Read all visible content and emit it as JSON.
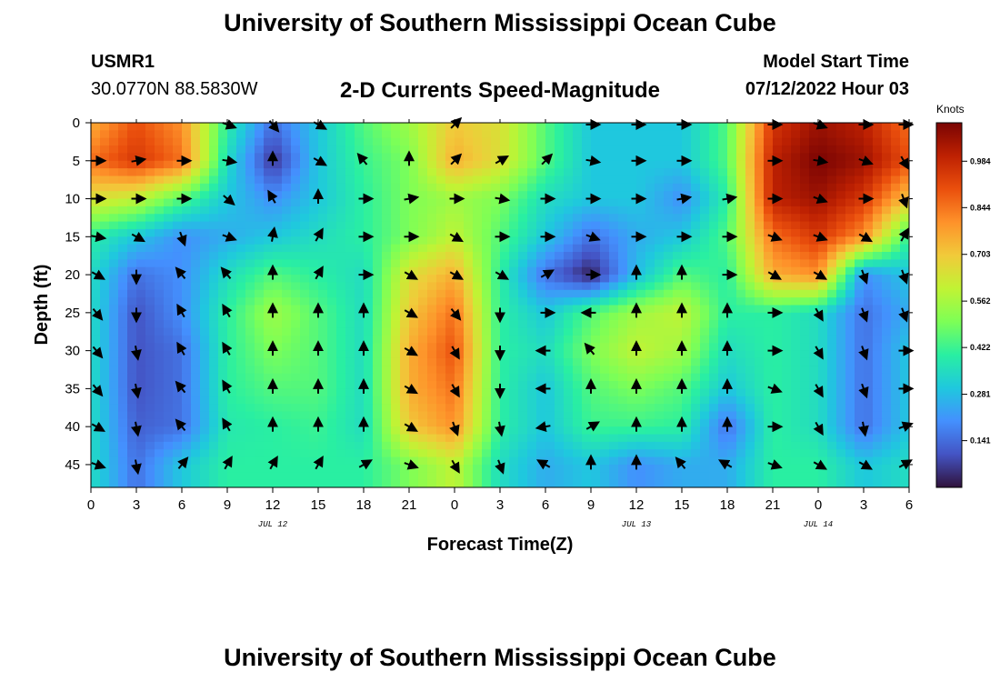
{
  "header": {
    "title": "University of Southern Mississippi Ocean Cube",
    "station": "USMR1",
    "coordinates": "30.0770N  88.5830W",
    "subtitle": "2-D Currents Speed-Magnitude",
    "model_start_label": "Model Start Time",
    "model_start_value": "07/12/2022 Hour 03",
    "footer_title": "University of Southern Mississippi Ocean Cube"
  },
  "chart_data": {
    "type": "heatmap",
    "xlabel": "Forecast Time(Z)",
    "ylabel": "Depth (ft)",
    "x_tick_labels": [
      "0",
      "3",
      "6",
      "9",
      "12",
      "15",
      "18",
      "21",
      "0",
      "3",
      "6",
      "9",
      "12",
      "15",
      "18",
      "21",
      "0",
      "3",
      "6"
    ],
    "x_range_hours": [
      0,
      54
    ],
    "date_labels": [
      {
        "text": "JUL 12",
        "at_hour": 12
      },
      {
        "text": "JUL 13",
        "at_hour": 36
      },
      {
        "text": "JUL 14",
        "at_hour": 48
      }
    ],
    "y_ticks": [
      0,
      5,
      10,
      15,
      20,
      25,
      30,
      35,
      40,
      45
    ],
    "ylim": [
      0,
      48
    ],
    "y_inverted": true,
    "colorbar": {
      "units": "Knots",
      "tick_labels": [
        "0.141",
        "0.281",
        "0.422",
        "0.562",
        "0.703",
        "0.844",
        "0.984"
      ],
      "range": [
        0,
        1.1
      ],
      "palette": [
        "#30123b",
        "#4454c4",
        "#4490fe",
        "#1fc8de",
        "#29efa2",
        "#7dff56",
        "#c1f334",
        "#f1ca3a",
        "#fe922a",
        "#ea4f0d",
        "#be2102",
        "#7a0403"
      ]
    },
    "arrow_hours": [
      0,
      3,
      6,
      9,
      12,
      15,
      18,
      21,
      24,
      27,
      30,
      33,
      36,
      39,
      42,
      45,
      48,
      51,
      54
    ],
    "arrow_depths": [
      0,
      5,
      10,
      15,
      20,
      25,
      30,
      35,
      40,
      45
    ],
    "direction_deg_rows": [
      [
        null,
        null,
        null,
        110,
        140,
        120,
        null,
        null,
        45,
        null,
        null,
        90,
        90,
        90,
        null,
        90,
        110,
        90,
        90
      ],
      [
        90,
        80,
        90,
        100,
        0,
        120,
        320,
        0,
        45,
        60,
        45,
        100,
        90,
        90,
        null,
        90,
        100,
        110,
        150
      ],
      [
        90,
        90,
        90,
        130,
        330,
        0,
        90,
        80,
        90,
        100,
        90,
        90,
        90,
        80,
        80,
        90,
        110,
        90,
        160
      ],
      [
        100,
        120,
        160,
        110,
        10,
        30,
        90,
        90,
        120,
        90,
        90,
        110,
        90,
        90,
        90,
        110,
        110,
        120,
        30
      ],
      [
        120,
        180,
        320,
        320,
        0,
        30,
        90,
        120,
        120,
        120,
        60,
        90,
        0,
        0,
        90,
        120,
        120,
        160,
        160
      ],
      [
        140,
        180,
        330,
        330,
        0,
        0,
        0,
        120,
        140,
        180,
        90,
        270,
        0,
        0,
        0,
        90,
        150,
        160,
        160
      ],
      [
        140,
        170,
        330,
        330,
        0,
        0,
        0,
        120,
        150,
        180,
        270,
        320,
        0,
        0,
        0,
        90,
        150,
        160,
        90
      ],
      [
        140,
        170,
        320,
        330,
        0,
        0,
        0,
        120,
        150,
        180,
        270,
        0,
        0,
        0,
        0,
        110,
        150,
        160,
        90
      ],
      [
        120,
        170,
        320,
        330,
        0,
        0,
        0,
        120,
        160,
        170,
        260,
        60,
        0,
        0,
        0,
        90,
        150,
        170,
        70
      ],
      [
        110,
        170,
        40,
        30,
        30,
        30,
        60,
        110,
        150,
        160,
        300,
        0,
        0,
        320,
        300,
        110,
        120,
        120,
        60
      ]
    ],
    "speed_knots_rows": [
      [
        0.75,
        0.9,
        0.8,
        0.4,
        0.15,
        0.3,
        0.45,
        0.55,
        0.7,
        0.65,
        0.45,
        0.3,
        0.3,
        0.3,
        0.45,
        0.95,
        1.05,
        1.0,
        0.85
      ],
      [
        0.85,
        0.95,
        0.85,
        0.35,
        0.05,
        0.3,
        0.42,
        0.5,
        0.75,
        0.65,
        0.45,
        0.3,
        0.3,
        0.3,
        0.45,
        1.0,
        1.1,
        1.05,
        0.9
      ],
      [
        0.65,
        0.6,
        0.45,
        0.3,
        0.2,
        0.3,
        0.4,
        0.5,
        0.55,
        0.5,
        0.35,
        0.3,
        0.3,
        0.2,
        0.4,
        1.0,
        1.05,
        0.95,
        0.7
      ],
      [
        0.4,
        0.3,
        0.2,
        0.25,
        0.3,
        0.35,
        0.4,
        0.5,
        0.6,
        0.45,
        0.3,
        0.15,
        0.25,
        0.3,
        0.45,
        0.85,
        0.95,
        0.8,
        0.4
      ],
      [
        0.35,
        0.15,
        0.2,
        0.35,
        0.45,
        0.4,
        0.35,
        0.65,
        0.75,
        0.4,
        0.15,
        0.02,
        0.28,
        0.45,
        0.4,
        0.75,
        0.8,
        0.2,
        0.3
      ],
      [
        0.35,
        0.1,
        0.2,
        0.4,
        0.55,
        0.45,
        0.35,
        0.7,
        0.85,
        0.4,
        0.3,
        0.45,
        0.55,
        0.6,
        0.4,
        0.4,
        0.35,
        0.15,
        0.25
      ],
      [
        0.35,
        0.1,
        0.15,
        0.4,
        0.5,
        0.45,
        0.35,
        0.75,
        0.9,
        0.4,
        0.35,
        0.5,
        0.6,
        0.55,
        0.35,
        0.4,
        0.35,
        0.15,
        0.3
      ],
      [
        0.35,
        0.1,
        0.15,
        0.4,
        0.45,
        0.45,
        0.35,
        0.75,
        0.85,
        0.4,
        0.3,
        0.45,
        0.5,
        0.45,
        0.3,
        0.4,
        0.35,
        0.15,
        0.3
      ],
      [
        0.35,
        0.12,
        0.15,
        0.38,
        0.4,
        0.42,
        0.35,
        0.7,
        0.8,
        0.4,
        0.3,
        0.42,
        0.42,
        0.4,
        0.15,
        0.4,
        0.35,
        0.15,
        0.3
      ],
      [
        0.35,
        0.15,
        0.3,
        0.4,
        0.4,
        0.4,
        0.4,
        0.5,
        0.6,
        0.35,
        0.25,
        0.3,
        0.2,
        0.25,
        0.25,
        0.4,
        0.4,
        0.3,
        0.35
      ]
    ]
  }
}
